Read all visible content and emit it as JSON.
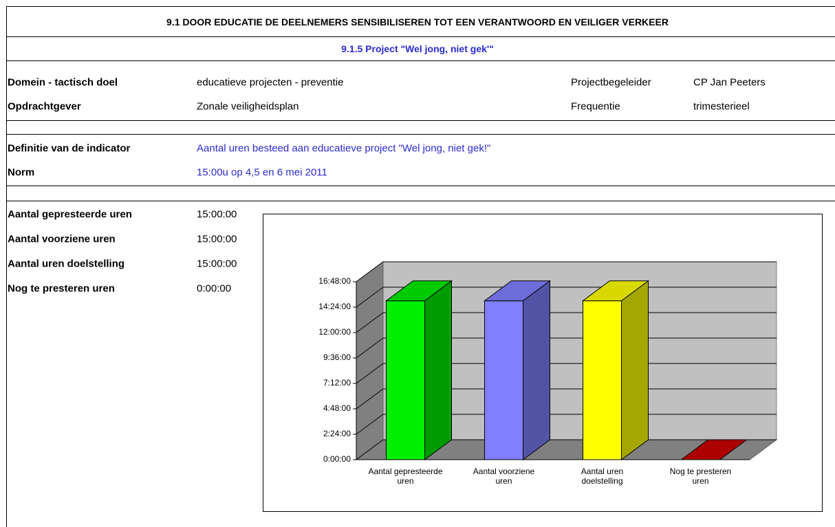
{
  "header": {
    "title": "9.1 DOOR EDUCATIE DE DEELNEMERS SENSIBILISEREN TOT EEN VERANTWOORD EN VEILIGER VERKEER",
    "subtitle": "9.1.5 Project \"Wel jong, niet gek'\""
  },
  "info": [
    {
      "label": "Domein - tactisch doel",
      "value": "educatieve projecten - preventie",
      "label2": "Projectbegeleider",
      "value2": "CP Jan Peeters"
    },
    {
      "label": "Opdrachtgever",
      "value": "Zonale veiligheidsplan",
      "label2": "Frequentie",
      "value2": "trimesterieel"
    }
  ],
  "definition": {
    "label": "Definitie van de indicator",
    "value": "Aantal uren besteed aan educatieve project \"Wel jong, niet gek!\""
  },
  "norm": {
    "label": "Norm",
    "value": "15:00u op 4,5 en 6 mei 2011"
  },
  "metrics": [
    {
      "label": "Aantal gepresteerde uren",
      "value": "15:00:00"
    },
    {
      "label": "Aantal voorziene uren",
      "value": "15:00:00"
    },
    {
      "label": "Aantal uren doelstelling",
      "value": "15:00:00"
    },
    {
      "label": "Nog te presteren uren",
      "value": "0:00:00"
    }
  ],
  "chart_data": {
    "type": "bar3d",
    "categories": [
      "Aantal gepresteerde uren",
      "Aantal voorziene uren",
      "Aantal uren doelstelling",
      "Nog te presteren uren"
    ],
    "values": [
      15,
      15,
      15,
      0
    ],
    "colors": [
      "#00ee00",
      "#8080ff",
      "#ffff00",
      "#cc0000"
    ],
    "ylim": [
      0,
      16.8
    ],
    "yticks": [
      {
        "value": 0,
        "label": "0:00:00"
      },
      {
        "value": 2.4,
        "label": "2:24:00"
      },
      {
        "value": 4.8,
        "label": "4:48:00"
      },
      {
        "value": 7.2,
        "label": "7:12:00"
      },
      {
        "value": 9.6,
        "label": "9:36:00"
      },
      {
        "value": 12,
        "label": "12:00:00"
      },
      {
        "value": 14.4,
        "label": "14:24:00"
      },
      {
        "value": 16.8,
        "label": "16:48:00"
      }
    ],
    "grid": true
  }
}
